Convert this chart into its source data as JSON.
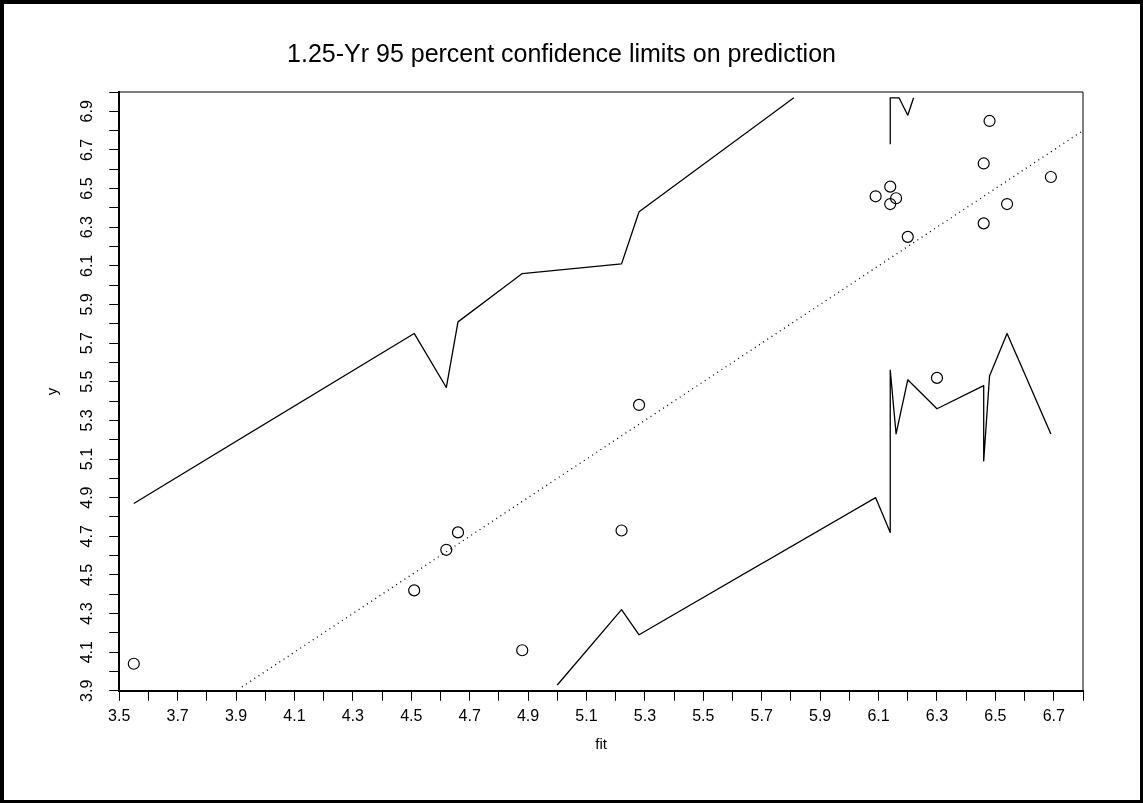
{
  "chart_data": {
    "type": "scatter",
    "title": "1.25-Yr 95 percent confidence limits on prediction",
    "xlabel": "fit",
    "ylabel": "y",
    "xlim": [
      3.5,
      6.8
    ],
    "xticks": [
      3.5,
      {
        "value": 3.6,
        "label": null
      },
      3.7,
      {
        "value": 3.8,
        "label": null
      },
      3.9,
      {
        "value": 4.0,
        "label": null
      },
      4.1,
      {
        "value": 4.2,
        "label": null
      },
      4.3,
      {
        "value": 4.4,
        "label": null
      },
      4.5,
      {
        "value": 4.6,
        "label": null
      },
      4.7,
      {
        "value": 4.8,
        "label": null
      },
      4.9,
      {
        "value": 5.0,
        "label": null
      },
      5.1,
      {
        "value": 5.2,
        "label": null
      },
      5.3,
      {
        "value": 5.4,
        "label": null
      },
      5.5,
      {
        "value": 5.6,
        "label": null
      },
      5.7,
      {
        "value": 5.8,
        "label": null
      },
      5.9,
      {
        "value": 6.0,
        "label": null
      },
      6.1,
      {
        "value": 6.2,
        "label": null
      },
      6.3,
      {
        "value": 6.4,
        "label": null
      },
      6.5,
      {
        "value": 6.6,
        "label": null
      },
      6.7,
      {
        "value": 6.8,
        "label": null
      }
    ],
    "ylim": [
      3.9,
      7.0
    ],
    "yticks": [
      3.9,
      {
        "value": 4.0,
        "label": null
      },
      4.1,
      {
        "value": 4.2,
        "label": null
      },
      4.3,
      {
        "value": 4.4,
        "label": null
      },
      4.5,
      {
        "value": 4.6,
        "label": null
      },
      4.7,
      {
        "value": 4.8,
        "label": null
      },
      4.9,
      {
        "value": 5.0,
        "label": null
      },
      5.1,
      {
        "value": 5.2,
        "label": null
      },
      5.3,
      {
        "value": 5.4,
        "label": null
      },
      5.5,
      {
        "value": 5.6,
        "label": null
      },
      5.7,
      {
        "value": 5.8,
        "label": null
      },
      5.9,
      {
        "value": 6.0,
        "label": null
      },
      6.1,
      {
        "value": 6.2,
        "label": null
      },
      6.3,
      {
        "value": 6.4,
        "label": null
      },
      6.5,
      {
        "value": 6.6,
        "label": null
      },
      6.7,
      {
        "value": 6.8,
        "label": null
      },
      6.9,
      {
        "value": 7.0,
        "label": null
      }
    ],
    "grid": false,
    "legend": false,
    "series": [
      {
        "type": "scatter",
        "marker": "circle",
        "color": "#000000",
        "x": [
          3.55,
          4.51,
          4.62,
          4.66,
          4.88,
          5.22,
          5.28,
          6.3,
          6.09,
          6.14,
          6.16,
          6.14,
          6.2,
          6.48,
          6.46,
          6.46,
          6.54,
          6.69
        ],
        "values": [
          4.04,
          4.42,
          4.63,
          4.72,
          4.11,
          4.73,
          5.38,
          5.52,
          6.46,
          6.51,
          6.45,
          6.42,
          6.25,
          6.85,
          6.63,
          6.32,
          6.42,
          6.56
        ]
      },
      {
        "type": "line",
        "marker": "none",
        "line_style": "solid",
        "color": "#000000",
        "x": [
          3.55,
          4.51,
          4.62,
          4.66,
          4.88,
          5.22,
          5.28,
          5.81,
          6.0,
          6.14,
          6.14,
          6.17,
          6.2,
          6.22
        ],
        "values": [
          4.87,
          5.75,
          5.47,
          5.81,
          6.06,
          6.11,
          6.38,
          6.97,
          null,
          6.73,
          6.97,
          6.97,
          6.88,
          6.97
        ]
      },
      {
        "type": "line",
        "marker": "none",
        "line_style": "solid",
        "color": "#000000",
        "x": [
          5.0,
          5.22,
          5.28,
          6.09,
          6.14,
          6.14,
          6.16,
          6.2,
          6.3,
          6.46,
          6.46,
          6.48,
          6.54,
          6.69
        ],
        "values": [
          3.93,
          4.32,
          4.19,
          4.9,
          4.72,
          5.56,
          5.23,
          5.51,
          5.36,
          5.48,
          5.09,
          5.53,
          5.75,
          5.23
        ]
      },
      {
        "type": "line",
        "marker": "none",
        "line_style": "dotted",
        "color": "#000000",
        "x": [
          3.92,
          6.8
        ],
        "values": [
          3.92,
          6.8
        ]
      }
    ]
  }
}
